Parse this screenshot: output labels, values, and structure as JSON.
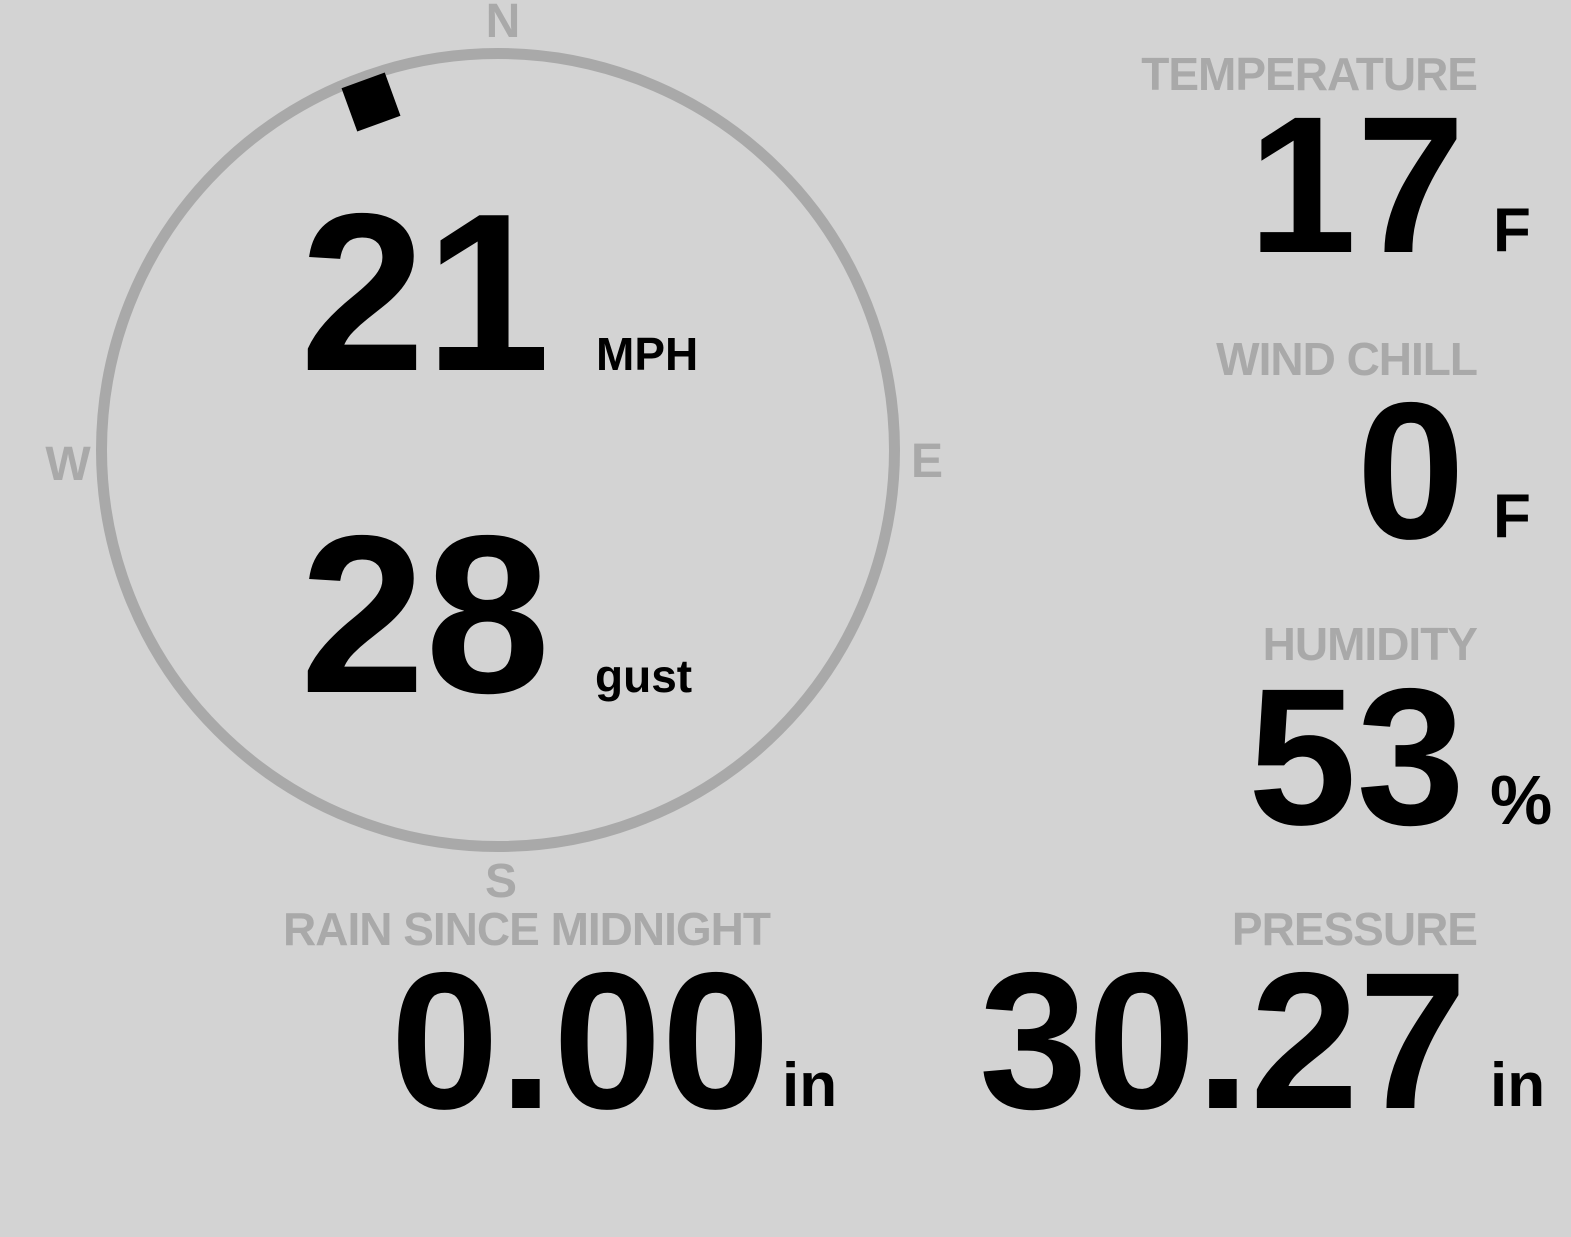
{
  "colors": {
    "background": "#d3d3d3",
    "muted": "#a9a9a9",
    "ink": "#000000"
  },
  "compass": {
    "cardinal": {
      "n": "N",
      "e": "E",
      "s": "S",
      "w": "W"
    },
    "wind_direction_deg": 340,
    "wind_speed": {
      "value": "21",
      "unit": "MPH"
    },
    "wind_gust": {
      "value": "28",
      "unit": "gust"
    }
  },
  "metrics": {
    "temperature": {
      "label": "TEMPERATURE",
      "value": "17",
      "unit": "F"
    },
    "wind_chill": {
      "label": "WIND CHILL",
      "value": "0",
      "unit": "F"
    },
    "humidity": {
      "label": "HUMIDITY",
      "value": "53",
      "unit": "%"
    },
    "rain": {
      "label": "RAIN SINCE MIDNIGHT",
      "value": "0.00",
      "unit": "in"
    },
    "pressure": {
      "label": "PRESSURE",
      "value": "30.27",
      "unit": "in"
    }
  }
}
